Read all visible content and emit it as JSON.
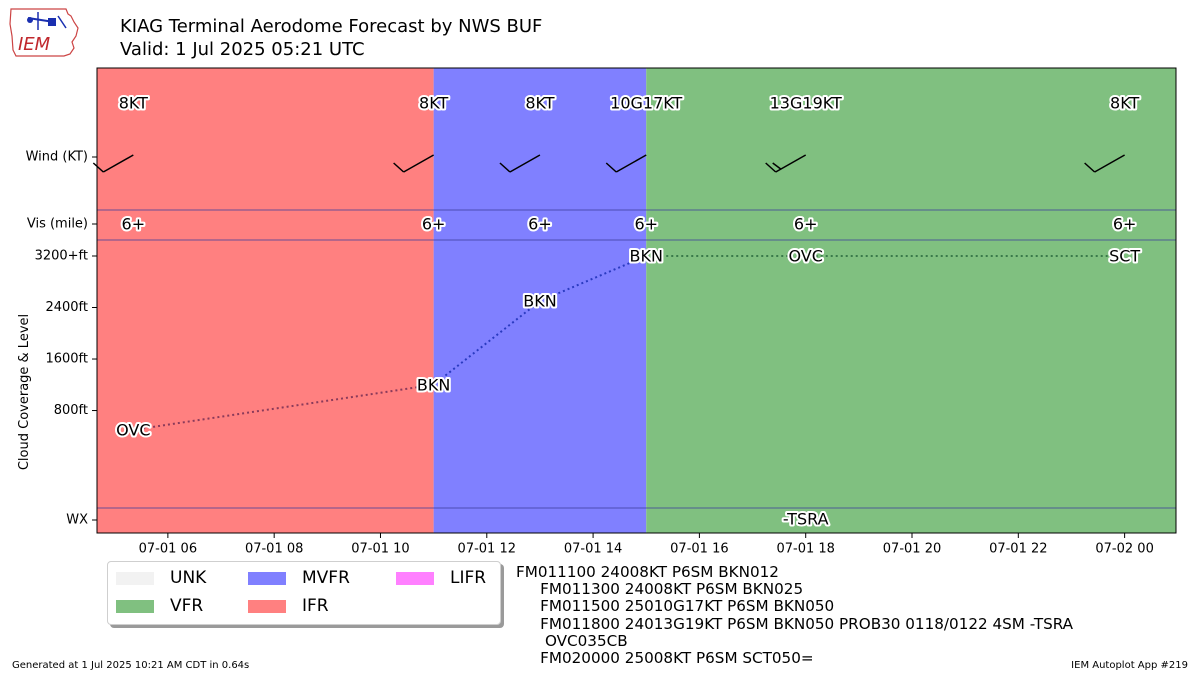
{
  "header": {
    "title_line1": "KIAG Terminal Aerodome Forecast by NWS BUF",
    "title_line2": "Valid: 1 Jul 2025 05:21 UTC"
  },
  "logo": {
    "text": "IEM"
  },
  "chart_data": {
    "type": "taf-timeline",
    "xlabel": "",
    "ylabel": "Cloud Coverage & Level",
    "x_range": [
      "2025-07-01 04:40",
      "2025-07-02 00:58"
    ],
    "x_ticks": [
      "07-01 06",
      "07-01 08",
      "07-01 10",
      "07-01 12",
      "07-01 14",
      "07-01 16",
      "07-01 18",
      "07-01 20",
      "07-01 22",
      "07-02 00"
    ],
    "y_rows": [
      "Wind (KT)",
      "Vis (mile)",
      "3200+ft",
      "2400ft",
      "1600ft",
      "800ft",
      "WX"
    ],
    "y_range_ft": [
      -900,
      3300
    ],
    "category_spans": [
      {
        "category": "IFR",
        "start": "2025-07-01 04:40",
        "end": "2025-07-01 11:00",
        "color": "#ff8080"
      },
      {
        "category": "MVFR",
        "start": "2025-07-01 11:00",
        "end": "2025-07-01 15:00",
        "color": "#8080ff"
      },
      {
        "category": "VFR",
        "start": "2025-07-01 15:00",
        "end": "2025-07-02 00:58",
        "color": "#80c080"
      }
    ],
    "wind": [
      {
        "time": "2025-07-01 05:21",
        "label": "8KT",
        "dir": 240,
        "speed": 8
      },
      {
        "time": "2025-07-01 11:00",
        "label": "8KT",
        "dir": 240,
        "speed": 8
      },
      {
        "time": "2025-07-01 13:00",
        "label": "8KT",
        "dir": 240,
        "speed": 8
      },
      {
        "time": "2025-07-01 15:00",
        "label": "10G17KT",
        "dir": 250,
        "speed": 10
      },
      {
        "time": "2025-07-01 18:00",
        "label": "13G19KT",
        "dir": 240,
        "speed": 13
      },
      {
        "time": "2025-07-02 00:00",
        "label": "8KT",
        "dir": 250,
        "speed": 8
      }
    ],
    "visibility": [
      {
        "time": "2025-07-01 05:21",
        "label": "6+"
      },
      {
        "time": "2025-07-01 11:00",
        "label": "6+"
      },
      {
        "time": "2025-07-01 13:00",
        "label": "6+"
      },
      {
        "time": "2025-07-01 15:00",
        "label": "6+"
      },
      {
        "time": "2025-07-01 18:00",
        "label": "6+"
      },
      {
        "time": "2025-07-02 00:00",
        "label": "6+"
      }
    ],
    "clouds": [
      {
        "time": "2025-07-01 05:21",
        "level_ft": 500,
        "coverage": "OVC"
      },
      {
        "time": "2025-07-01 11:00",
        "level_ft": 1200,
        "coverage": "BKN"
      },
      {
        "time": "2025-07-01 13:00",
        "level_ft": 2500,
        "coverage": "BKN"
      },
      {
        "time": "2025-07-01 15:00",
        "level_ft": 3200,
        "coverage": "BKN"
      },
      {
        "time": "2025-07-01 18:00",
        "level_ft": 3200,
        "coverage": "OVC"
      },
      {
        "time": "2025-07-02 00:00",
        "level_ft": 3200,
        "coverage": "SCT"
      }
    ],
    "weather": [
      {
        "time": "2025-07-01 18:00",
        "label": "-TSRA"
      }
    ],
    "legend": [
      {
        "label": "UNK",
        "color": "#f2f2f2"
      },
      {
        "label": "VFR",
        "color": "#80c080"
      },
      {
        "label": "MVFR",
        "color": "#8080ff"
      },
      {
        "label": "IFR",
        "color": "#ff8080"
      },
      {
        "label": "LIFR",
        "color": "#ff80ff"
      }
    ]
  },
  "taf_text": "FM011100 24008KT P6SM BKN012\n     FM011300 24008KT P6SM BKN025\n     FM011500 25010G17KT P6SM BKN050\n     FM011800 24013G19KT P6SM BKN050 PROB30 0118/0122 4SM -TSRA\n      OVC035CB\n     FM020000 25008KT P6SM SCT050=",
  "footer": {
    "generated": "Generated at 1 Jul 2025 10:21 AM CDT in 0.64s",
    "app": "IEM Autoplot App #219"
  }
}
